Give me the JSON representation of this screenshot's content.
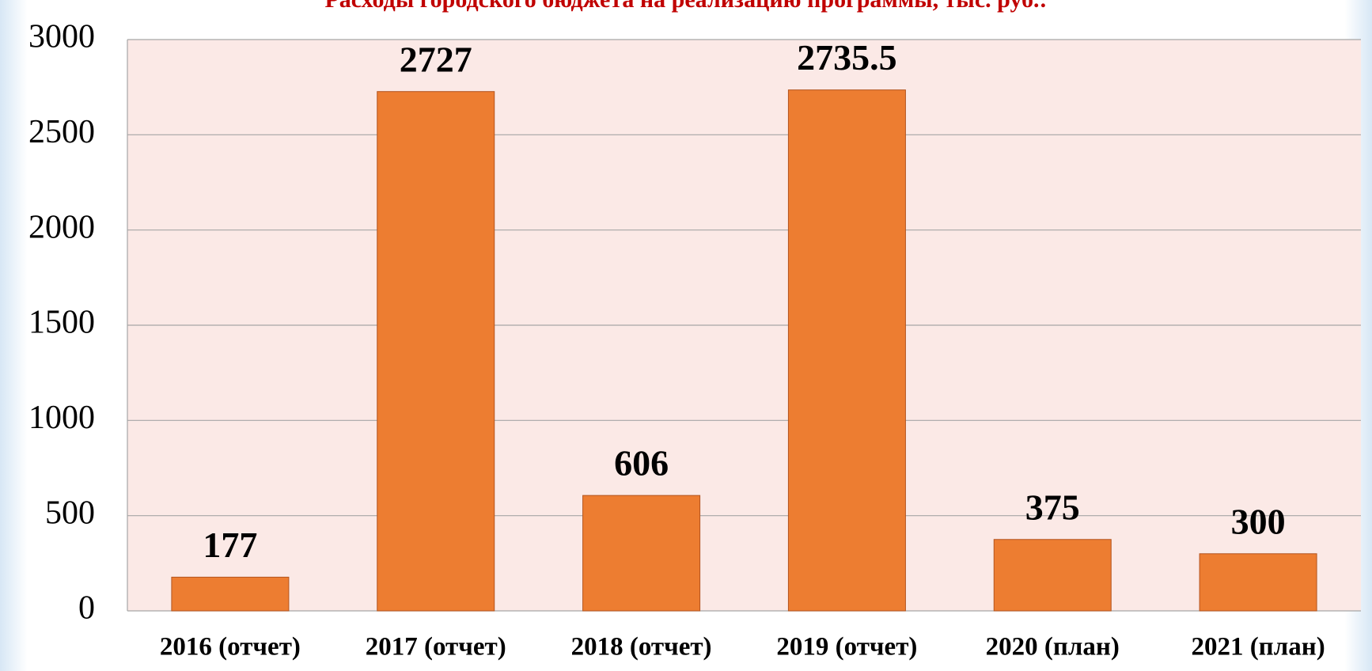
{
  "chart_data": {
    "type": "bar",
    "title": "Расходы городского бюджета на реализацию программы, тыс. руб.:",
    "categories": [
      "2016 (отчет)",
      "2017 (отчет)",
      "2018 (отчет)",
      "2019 (отчет)",
      "2020 (план)",
      "2021 (план)"
    ],
    "values": [
      177,
      2727,
      606,
      2735.5,
      375,
      300
    ],
    "color": "#ed7d31",
    "ylim": [
      0,
      3000
    ],
    "yticks": [
      0,
      500,
      1000,
      1500,
      2000,
      2500,
      3000
    ],
    "grid": true
  }
}
